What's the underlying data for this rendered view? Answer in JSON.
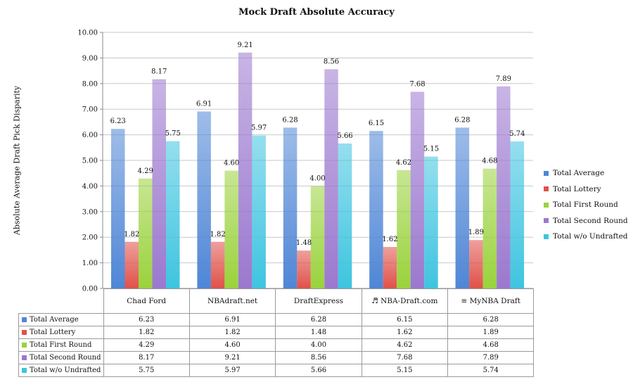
{
  "chart_data": {
    "type": "bar",
    "title": "Mock Draft Absolute Accuracy",
    "xlabel": "",
    "ylabel": "Absolute Average Draft Pick Disparity",
    "ylim": [
      0,
      10
    ],
    "yticks": [
      "0.00",
      "1.00",
      "2.00",
      "3.00",
      "4.00",
      "5.00",
      "6.00",
      "7.00",
      "8.00",
      "9.00",
      "10.00"
    ],
    "grid": true,
    "legend_position": "right",
    "categories": [
      "Chad Ford",
      "NBAdraft.net",
      "DraftExpress",
      "♬ NBA-Draft.com",
      "≡ MyNBA Draft"
    ],
    "series": [
      {
        "name": "Total Average",
        "color": "#4f86d6",
        "values": [
          6.23,
          6.91,
          6.28,
          6.15,
          6.28
        ],
        "labels": [
          "6.23",
          "6.91",
          "6.28",
          "6.15",
          "6.28"
        ]
      },
      {
        "name": "Total Lottery",
        "color": "#e0514a",
        "values": [
          1.82,
          1.82,
          1.48,
          1.62,
          1.89
        ],
        "labels": [
          "1.82",
          "1.82",
          "1.48",
          "1.62",
          "1.89"
        ]
      },
      {
        "name": "Total First Round",
        "color": "#9ad23c",
        "values": [
          4.29,
          4.6,
          4.0,
          4.62,
          4.68
        ],
        "labels": [
          "4.29",
          "4.60",
          "4.00",
          "4.62",
          "4.68"
        ]
      },
      {
        "name": "Total Second Round",
        "color": "#9b78cf",
        "values": [
          8.17,
          9.21,
          8.56,
          7.68,
          7.89
        ],
        "labels": [
          "8.17",
          "9.21",
          "8.56",
          "7.68",
          "7.89"
        ]
      },
      {
        "name": "Total w/o Undrafted",
        "color": "#3ec4e0",
        "values": [
          5.75,
          5.97,
          5.66,
          5.15,
          5.74
        ],
        "labels": [
          "5.75",
          "5.97",
          "5.66",
          "5.15",
          "5.74"
        ]
      }
    ]
  }
}
